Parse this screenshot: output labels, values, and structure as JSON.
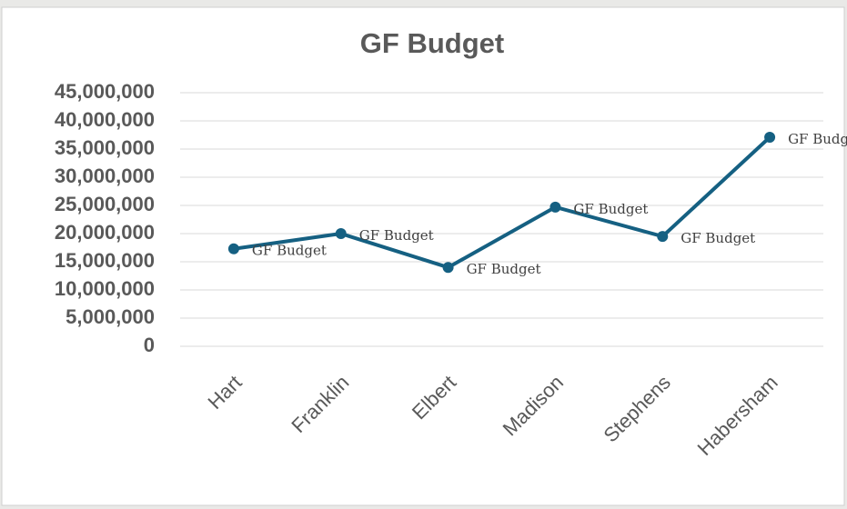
{
  "chart_data": {
    "type": "line",
    "title": "GF Budget",
    "categories": [
      "Hart",
      "Franklin",
      "Elbert",
      "Madison",
      "Stephens",
      "Habersham"
    ],
    "series": [
      {
        "name": "GF Budget",
        "color": "#156082",
        "values": [
          17300000,
          20000000,
          14000000,
          24700000,
          19500000,
          37100000
        ]
      }
    ],
    "ylim": [
      0,
      45000000
    ],
    "yticks": [
      0,
      {
        "value": 5000000,
        "label": "5,000,000"
      },
      {
        "value": 10000000,
        "label": "10,000,000"
      },
      {
        "value": 15000000,
        "label": "15,000,000"
      },
      {
        "value": 20000000,
        "label": "20,000,000"
      },
      {
        "value": 25000000,
        "label": "25,000,000"
      },
      {
        "value": 30000000,
        "label": "30,000,000"
      },
      {
        "value": 35000000,
        "label": "35,000,000"
      },
      {
        "value": 40000000,
        "label": "40,000,000"
      },
      {
        "value": 45000000,
        "label": "45,000,000"
      }
    ],
    "grid": true
  }
}
